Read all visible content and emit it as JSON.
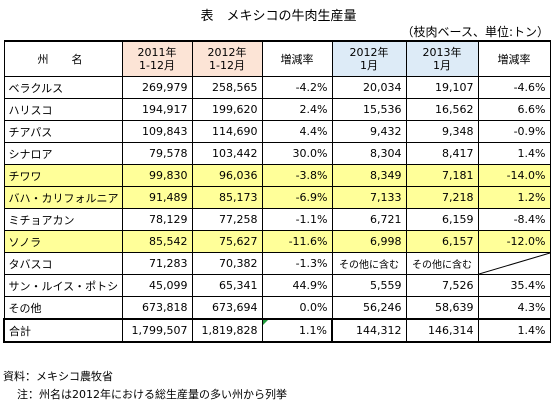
{
  "title": "表　メキシコの牛肉生産量",
  "unit": "（枝肉ベース、単位:トン）",
  "headers": {
    "state": "州　名",
    "col1": "2011年\n1-12月",
    "col2": "2012年\n1-12月",
    "col3": "増減率",
    "col4": "2012年\n1月",
    "col5": "2013年\n1月",
    "col6": "増減率"
  },
  "rows": [
    {
      "name": "ベラクルス",
      "v2011": "269,979",
      "v2012": "258,565",
      "r1": "-4.2%",
      "j2012": "20,034",
      "j2013": "19,107",
      "r2": "-4.6%",
      "hl": false
    },
    {
      "name": "ハリスコ",
      "v2011": "194,917",
      "v2012": "199,620",
      "r1": "2.4%",
      "j2012": "15,536",
      "j2013": "16,562",
      "r2": "6.6%",
      "hl": false
    },
    {
      "name": "チアパス",
      "v2011": "109,843",
      "v2012": "114,690",
      "r1": "4.4%",
      "j2012": "9,432",
      "j2013": "9,348",
      "r2": "-0.9%",
      "hl": false
    },
    {
      "name": "シナロア",
      "v2011": "79,578",
      "v2012": "103,442",
      "r1": "30.0%",
      "j2012": "8,304",
      "j2013": "8,417",
      "r2": "1.4%",
      "hl": false
    },
    {
      "name": "チワワ",
      "v2011": "99,830",
      "v2012": "96,036",
      "r1": "-3.8%",
      "j2012": "8,349",
      "j2013": "7,181",
      "r2": "-14.0%",
      "hl": true
    },
    {
      "name": "バハ・カリフォルニア",
      "v2011": "91,489",
      "v2012": "85,173",
      "r1": "-6.9%",
      "j2012": "7,133",
      "j2013": "7,218",
      "r2": "1.2%",
      "hl": true
    },
    {
      "name": "ミチョアカン",
      "v2011": "78,129",
      "v2012": "77,258",
      "r1": "-1.1%",
      "j2012": "6,721",
      "j2013": "6,159",
      "r2": "-8.4%",
      "hl": false
    },
    {
      "name": "ソノラ",
      "v2011": "85,542",
      "v2012": "75,627",
      "r1": "-11.6%",
      "j2012": "6,998",
      "j2013": "6,157",
      "r2": "-12.0%",
      "hl": true
    },
    {
      "name": "タバスコ",
      "v2011": "71,283",
      "v2012": "70,382",
      "r1": "-1.3%",
      "j2012": "その他に含む",
      "j2013": "その他に含む",
      "r2": "",
      "hl": false
    },
    {
      "name": "サン・ルイス・ポトシ",
      "v2011": "45,099",
      "v2012": "65,341",
      "r1": "44.9%",
      "j2012": "5,559",
      "j2013": "7,526",
      "r2": "35.4%",
      "hl": false
    },
    {
      "name": "その他",
      "v2011": "673,818",
      "v2012": "673,694",
      "r1": "0.0%",
      "j2012": "56,246",
      "j2013": "58,639",
      "r2": "4.3%",
      "hl": false
    }
  ],
  "total": {
    "name": "合計",
    "v2011": "1,799,507",
    "v2012": "1,819,828",
    "r1": "1.1%",
    "j2012": "144,312",
    "j2013": "146,314",
    "r2": "1.4%"
  },
  "notes": {
    "source": "資料：メキシコ農牧省",
    "note": "注：州名は2012年における総生産量の多い州から列挙"
  }
}
